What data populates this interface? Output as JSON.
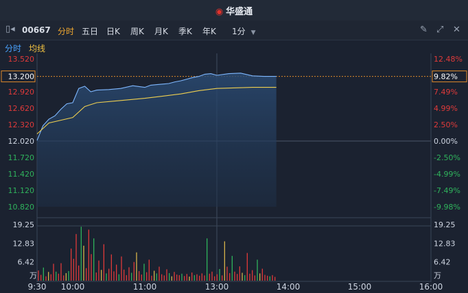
{
  "app": {
    "brand": "华盛通",
    "brand_icon": "huasheng-logo-icon"
  },
  "toolbar": {
    "code": "00667",
    "tabs": [
      "分时",
      "五日",
      "日K",
      "周K",
      "月K",
      "季K",
      "年K"
    ],
    "active_tab": "分时",
    "interval": "1分",
    "icons": [
      "edit-icon",
      "expand-icon",
      "close-icon"
    ]
  },
  "legend": {
    "items": [
      {
        "label": "分时",
        "color": "#4aa3ff"
      },
      {
        "label": "均线",
        "color": "#f0c040"
      }
    ]
  },
  "colors": {
    "up": "#e03a3a",
    "down": "#2fb35c",
    "price_line": "#7fb8ff",
    "avg_line": "#f0d050",
    "grid": "#3a4558",
    "bg": "#1b2230"
  },
  "price_axis": {
    "left_labels": [
      "13.520",
      "13.200",
      "12.920",
      "12.620",
      "12.320",
      "12.020",
      "11.720",
      "11.420",
      "11.120",
      "10.820"
    ],
    "right_labels": [
      "12.48%",
      "9.82%",
      "7.49%",
      "4.99%",
      "2.50%",
      "0.00%",
      "-2.50%",
      "-4.99%",
      "-7.49%",
      "-9.98%"
    ],
    "current_price": "13.200",
    "current_pct": "9.82%",
    "prev_close": 12.02
  },
  "volume_axis": {
    "labels": [
      "19.25",
      "12.83",
      "6.42"
    ],
    "unit": "万"
  },
  "time_axis": {
    "labels": [
      "9:30",
      "10:00",
      "11:00",
      "13:00",
      "14:00",
      "15:00",
      "16:00"
    ]
  },
  "chart_data": {
    "type": "line",
    "x_range": [
      "9:30",
      "16:00"
    ],
    "ylim": [
      10.82,
      13.52
    ],
    "series": [
      {
        "name": "分时",
        "x": [
          "9:30",
          "9:35",
          "9:40",
          "9:45",
          "9:50",
          "9:55",
          "10:00",
          "10:05",
          "10:10",
          "10:15",
          "10:20",
          "10:30",
          "10:40",
          "10:50",
          "11:00",
          "11:10",
          "11:20",
          "11:30",
          "11:40",
          "11:50",
          "12:00",
          "12:10",
          "12:20",
          "12:30",
          "12:40",
          "12:50",
          "13:00",
          "13:10",
          "13:20",
          "13:30",
          "13:40",
          "13:50"
        ],
        "values": [
          12.03,
          12.3,
          12.42,
          12.48,
          12.6,
          12.7,
          12.72,
          12.98,
          13.02,
          12.92,
          12.95,
          12.96,
          12.98,
          13.03,
          13.0,
          13.04,
          13.05,
          13.06,
          13.07,
          13.1,
          13.12,
          13.15,
          13.18,
          13.2,
          13.24,
          13.25,
          13.22,
          13.25,
          13.26,
          13.21,
          13.2,
          13.2
        ]
      },
      {
        "name": "均线",
        "x": [
          "9:30",
          "9:40",
          "9:50",
          "10:00",
          "10:10",
          "10:20",
          "10:40",
          "11:00",
          "11:30",
          "12:00",
          "12:30",
          "13:00",
          "13:30",
          "13:50"
        ],
        "values": [
          12.15,
          12.35,
          12.4,
          12.45,
          12.65,
          12.72,
          12.76,
          12.8,
          12.84,
          12.88,
          12.94,
          12.98,
          13.0,
          13.0
        ]
      }
    ],
    "volume": {
      "x_range": [
        "9:30",
        "13:50"
      ],
      "values": [
        3.5,
        2.0,
        4.5,
        1.5,
        3.0,
        2.2,
        5.8,
        3.1,
        2.4,
        6.0,
        1.8,
        2.6,
        3.3,
        11.0,
        7.5,
        16.0,
        5.2,
        18.5,
        12.0,
        4.3,
        17.5,
        9.1,
        14.5,
        2.8,
        6.9,
        3.7,
        12.5,
        2.5,
        4.1,
        9.0,
        3.2,
        5.5,
        2.2,
        8.3,
        3.8,
        1.9,
        4.6,
        2.7,
        6.4,
        9.7,
        3.3,
        2.1,
        5.8,
        2.9,
        7.2,
        1.7,
        3.4,
        2.5,
        4.8,
        2.2,
        1.8,
        3.9,
        2.6,
        1.5,
        3.0,
        2.1,
        1.9,
        2.4,
        1.6,
        2.3,
        1.4,
        2.8,
        1.9,
        2.2,
        1.7,
        2.5,
        1.8,
        14.5,
        2.4,
        3.1,
        1.5,
        2.2,
        4.0,
        1.8,
        13.5,
        4.8,
        2.6,
        8.5,
        3.1,
        2.3,
        4.9,
        2.7,
        1.9,
        9.5,
        2.4,
        3.6,
        1.8,
        7.2,
        2.5,
        4.1,
        2.0,
        1.7,
        1.5,
        1.9,
        1.3
      ],
      "ylim": [
        0,
        19.25
      ]
    }
  }
}
